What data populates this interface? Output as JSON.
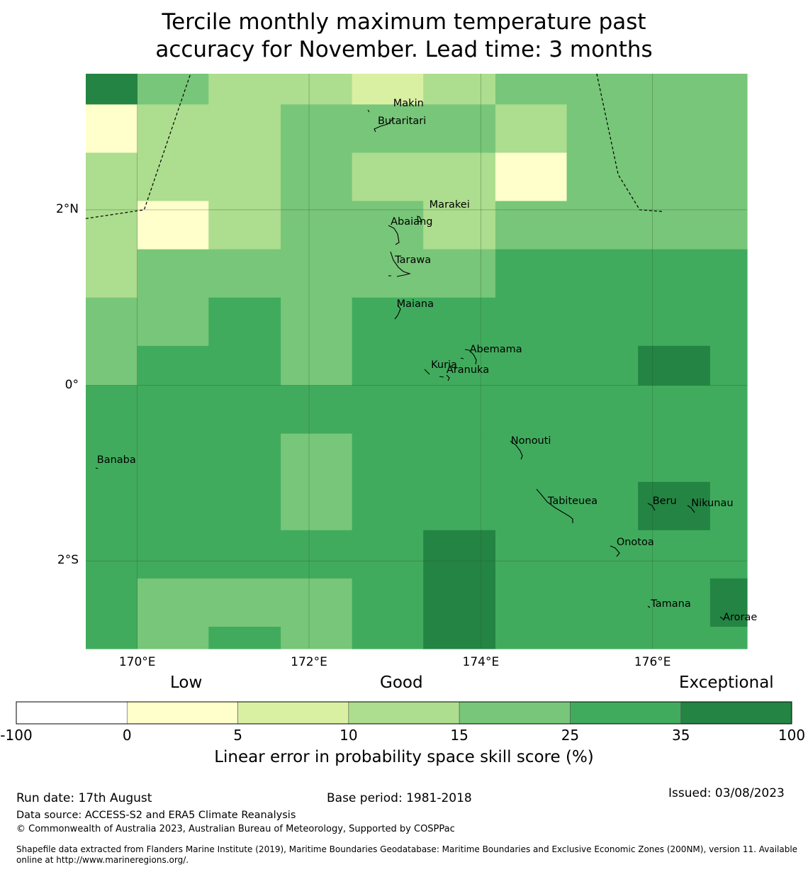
{
  "title": {
    "line1": "Tercile monthly maximum temperature past",
    "line2": "accuracy for November. Lead time: 3 months"
  },
  "map": {
    "lon_range": [
      169.4,
      177.1
    ],
    "lat_range": [
      -3.0,
      3.55
    ],
    "grid_columns_lon": [
      169.4,
      170.0,
      170.83,
      171.67,
      172.5,
      173.33,
      174.17,
      175.0,
      175.83,
      176.67,
      177.1
    ],
    "grid_rows_lat": [
      3.55,
      3.2,
      2.65,
      2.1,
      1.55,
      1.0,
      0.45,
      0.0,
      -0.55,
      -1.1,
      -1.65,
      -2.2,
      -2.75,
      -3.0
    ],
    "cell_classes": [
      [
        6,
        4,
        3,
        3,
        2,
        3,
        4,
        4,
        4,
        4
      ],
      [
        1,
        3,
        3,
        4,
        4,
        4,
        3,
        4,
        4,
        4
      ],
      [
        3,
        3,
        3,
        4,
        3,
        3,
        1,
        4,
        4,
        4
      ],
      [
        3,
        1,
        3,
        4,
        4,
        3,
        4,
        4,
        4,
        4
      ],
      [
        3,
        4,
        4,
        4,
        4,
        4,
        5,
        5,
        5,
        5
      ],
      [
        4,
        4,
        5,
        4,
        5,
        5,
        5,
        5,
        5,
        5
      ],
      [
        4,
        5,
        5,
        4,
        5,
        5,
        5,
        5,
        6,
        5
      ],
      [
        5,
        5,
        5,
        5,
        5,
        5,
        5,
        5,
        5,
        5
      ],
      [
        5,
        5,
        5,
        4,
        5,
        5,
        5,
        5,
        5,
        5
      ],
      [
        5,
        5,
        5,
        4,
        5,
        5,
        5,
        5,
        6,
        5
      ],
      [
        5,
        5,
        5,
        5,
        5,
        6,
        5,
        5,
        5,
        5
      ],
      [
        5,
        4,
        4,
        4,
        5,
        6,
        5,
        5,
        5,
        6
      ],
      [
        5,
        4,
        5,
        4,
        5,
        6,
        5,
        5,
        5,
        5
      ]
    ],
    "lon_ticks": [
      {
        "value": 170,
        "label": "170°E"
      },
      {
        "value": 172,
        "label": "172°E"
      },
      {
        "value": 174,
        "label": "174°E"
      },
      {
        "value": 176,
        "label": "176°E"
      }
    ],
    "lat_ticks": [
      {
        "value": 2,
        "label": "2°N"
      },
      {
        "value": 0,
        "label": "0°"
      },
      {
        "value": -2,
        "label": "2°S"
      }
    ],
    "eez_boundaries": [
      [
        [
          169.4,
          1.9
        ],
        [
          170.08,
          2.0
        ],
        [
          170.62,
          3.55
        ]
      ],
      [
        [
          175.35,
          3.55
        ],
        [
          175.6,
          2.4
        ],
        [
          175.85,
          2.0
        ],
        [
          176.12,
          1.98
        ]
      ]
    ],
    "places": [
      {
        "name": "Makin",
        "lon": 172.98,
        "lat": 3.2
      },
      {
        "name": "Butaritari",
        "lon": 172.8,
        "lat": 3.0
      },
      {
        "name": "Marakei",
        "lon": 173.4,
        "lat": 2.05
      },
      {
        "name": "Abaiang",
        "lon": 172.95,
        "lat": 1.85
      },
      {
        "name": "Tarawa",
        "lon": 173.0,
        "lat": 1.42
      },
      {
        "name": "Maiana",
        "lon": 173.02,
        "lat": 0.92
      },
      {
        "name": "Abemama",
        "lon": 173.87,
        "lat": 0.4
      },
      {
        "name": "Kuria",
        "lon": 173.42,
        "lat": 0.22
      },
      {
        "name": "Aranuka",
        "lon": 173.6,
        "lat": 0.17
      },
      {
        "name": "Nonouti",
        "lon": 174.35,
        "lat": -0.64
      },
      {
        "name": "Banaba",
        "lon": 169.53,
        "lat": -0.86
      },
      {
        "name": "Tabiteuea",
        "lon": 174.78,
        "lat": -1.33
      },
      {
        "name": "Beru",
        "lon": 176.0,
        "lat": -1.33
      },
      {
        "name": "Nikunau",
        "lon": 176.45,
        "lat": -1.35
      },
      {
        "name": "Onotoa",
        "lon": 175.58,
        "lat": -1.8
      },
      {
        "name": "Tamana",
        "lon": 175.98,
        "lat": -2.5
      },
      {
        "name": "Arorae",
        "lon": 176.82,
        "lat": -2.65
      }
    ]
  },
  "legend": {
    "categories": [
      "Low",
      "Good",
      "Exceptional"
    ],
    "bins": [
      {
        "from": -100,
        "to": 0,
        "color": "#ffffff"
      },
      {
        "from": 0,
        "to": 5,
        "color": "#ffffcc"
      },
      {
        "from": 5,
        "to": 10,
        "color": "#d9f0a3"
      },
      {
        "from": 10,
        "to": 15,
        "color": "#addd8e"
      },
      {
        "from": 15,
        "to": 25,
        "color": "#78c679"
      },
      {
        "from": 25,
        "to": 35,
        "color": "#41ab5d"
      },
      {
        "from": 35,
        "to": 100,
        "color": "#238443"
      }
    ],
    "tick_labels": [
      "-100",
      "0",
      "5",
      "10",
      "15",
      "25",
      "35",
      "100"
    ],
    "label": "Linear error in probability space skill score (%)"
  },
  "footer": {
    "run_date": "Run date: 17th August",
    "base_period": "Base period: 1981-2018",
    "issued": "Issued: 03/08/2023",
    "data_source": "Data source: ACCESS-S2 and ERA5 Climate Reanalysis",
    "copyright": "© Commonwealth of Australia 2023, Australian Bureau of Meteorology, Supported by COSPPac",
    "shapefile_line1": "Shapefile data extracted from Flanders Marine Institute (2019), Maritime Boundaries Geodatabase: Maritime Boundaries and Exclusive Economic Zones (200NM), version 11. Available",
    "shapefile_line2": "online at http://www.marineregions.org/."
  }
}
